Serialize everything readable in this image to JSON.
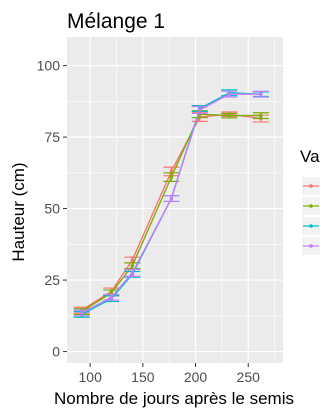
{
  "chart_data": {
    "type": "line",
    "title": "Mélange 1",
    "xlabel": "Nombre de jours après le semis",
    "ylabel": "Hauteur (cm)",
    "xlim": [
      78,
      283
    ],
    "ylim": [
      -4,
      110
    ],
    "x_ticks": [
      100,
      150,
      200,
      250
    ],
    "y_ticks": [
      0,
      25,
      50,
      75,
      100
    ],
    "grid": true,
    "legend": {
      "title": "Va",
      "position": "right"
    },
    "series": [
      {
        "color": "#F8766D",
        "points": [
          [
            92,
            14.5
          ],
          [
            120,
            21
          ],
          [
            140,
            32
          ],
          [
            177,
            63
          ],
          [
            204,
            82
          ],
          [
            232,
            83
          ],
          [
            262,
            81.5
          ]
        ],
        "errors": [
          1,
          1.2,
          1,
          1.5,
          1.5,
          0.8,
          1.2
        ]
      },
      {
        "color": "#7CAE00",
        "points": [
          [
            92,
            14
          ],
          [
            120,
            20.5
          ],
          [
            140,
            30
          ],
          [
            177,
            61
          ],
          [
            204,
            83
          ],
          [
            232,
            82.5
          ],
          [
            262,
            82.5
          ]
        ],
        "errors": [
          1,
          1,
          1,
          1.5,
          1.2,
          0.8,
          1
        ]
      },
      {
        "color": "#00BFC4",
        "points": [
          [
            92,
            13
          ],
          [
            120,
            18.5
          ],
          [
            140,
            27
          ],
          [
            177,
            53.5
          ],
          [
            204,
            85
          ],
          [
            232,
            90.5
          ],
          [
            262,
            90
          ]
        ],
        "errors": [
          1,
          1,
          1,
          1,
          1,
          1,
          0.8
        ]
      },
      {
        "color": "#C77CFF",
        "points": [
          [
            92,
            13.5
          ],
          [
            120,
            19
          ],
          [
            140,
            27.5
          ],
          [
            177,
            53.5
          ],
          [
            204,
            84.5
          ],
          [
            232,
            90
          ],
          [
            262,
            90
          ]
        ],
        "errors": [
          1,
          1,
          1.2,
          1,
          1.2,
          1,
          1
        ]
      }
    ]
  }
}
